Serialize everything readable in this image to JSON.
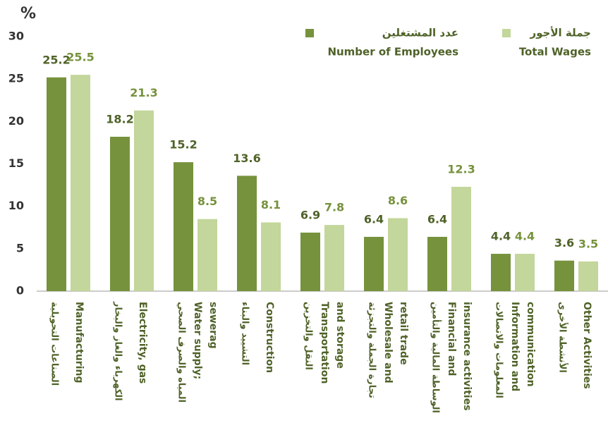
{
  "chart_data": {
    "type": "bar",
    "y_label": "%",
    "categories": [
      [
        "Manufacturing"
      ],
      [
        "Electricity, gas"
      ],
      [
        "Water supply;",
        "sewerag"
      ],
      [
        "Construction"
      ],
      [
        "Transportation",
        "and storage"
      ],
      [
        "Wholesale and",
        "retail trade"
      ],
      [
        "Financial and",
        "insurance activities"
      ],
      [
        "Information and",
        "communication"
      ],
      [
        "Other Activities"
      ]
    ],
    "categories_arabic": [
      "الصناعات التحويلية",
      "الكهرباء والغاز والبخار",
      "المياه والصرف الصحي",
      "التشييد والبناء",
      "النقل والتخزين",
      "تجارة الجملة والتجزئة",
      "الوساطة المالية والتأمين",
      "المعلومات والاتصالات",
      "الأنشطة الأخرى"
    ],
    "series": [
      {
        "name": "Number of Employees",
        "name_arabic": "عدد المشتغلين",
        "color": "#76923c",
        "label_color": "#4f6228",
        "values": [
          25.2,
          18.2,
          15.2,
          13.6,
          6.9,
          6.4,
          6.4,
          4.4,
          3.6
        ]
      },
      {
        "name": "Total Wages",
        "name_arabic": "جملة الأجور",
        "color": "#c3d69b",
        "label_color": "#76923c",
        "values": [
          25.5,
          21.3,
          8.5,
          8.1,
          7.8,
          8.6,
          12.3,
          4.4,
          3.5
        ]
      }
    ],
    "ylim": [
      0,
      30
    ],
    "yticks": [
      0,
      5,
      10,
      15,
      20,
      25,
      30
    ]
  }
}
